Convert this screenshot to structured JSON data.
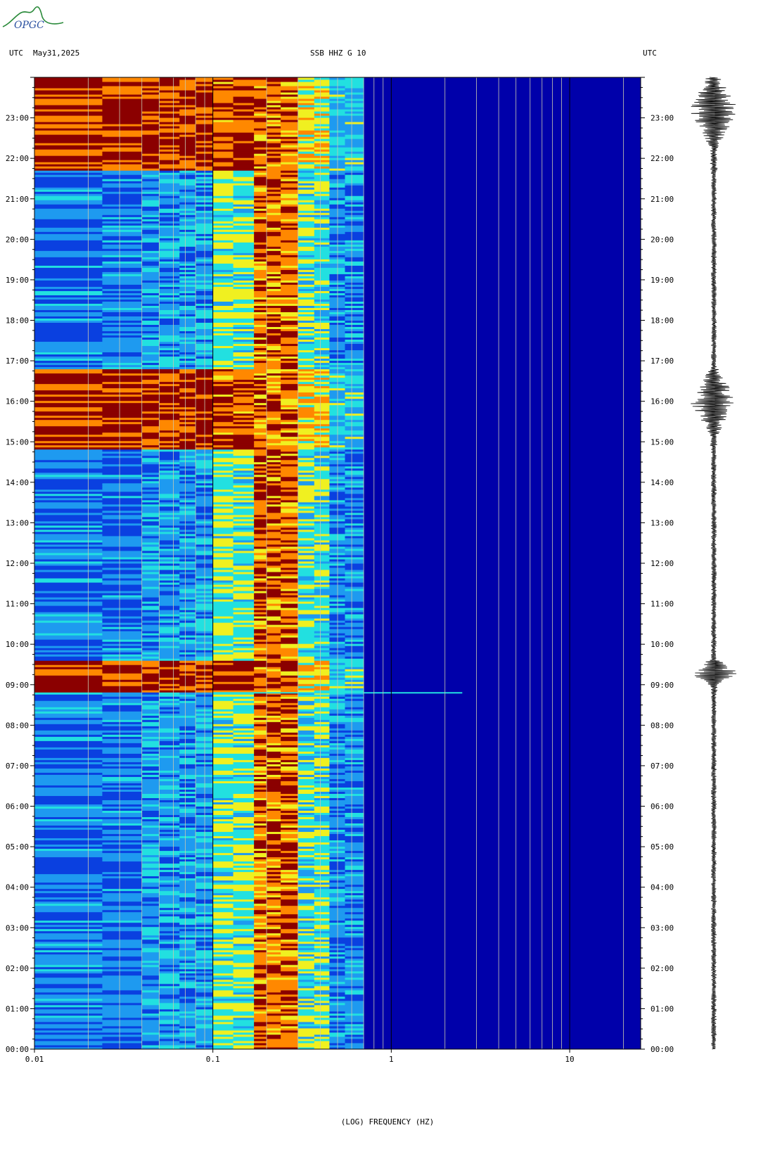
{
  "header": {
    "tz_left": "UTC",
    "date": "May31,2025",
    "station": "SSB HHZ G 10",
    "tz_right": "UTC"
  },
  "logo": {
    "text": "OPGC"
  },
  "colors": {
    "background": "#0000aa",
    "low": "#0a40e0",
    "mid_low": "#1e9af0",
    "mid": "#22e0e0",
    "mid_high": "#f0f020",
    "high": "#ff8800",
    "max": "#8b0000",
    "trace": "#000000",
    "grid": "#c8c8b0"
  },
  "chart_data": {
    "type": "heatmap",
    "title": "SSB HHZ G 10",
    "xlabel": "(LOG) FREQUENCY (HZ)",
    "x_scale": "log",
    "xlim": [
      0.01,
      25
    ],
    "x_ticks": [
      "0.01",
      "0.1",
      "1",
      "10"
    ],
    "y_unit": "UTC hour",
    "ylim": [
      0,
      24
    ],
    "y_ticks": [
      "00:00",
      "01:00",
      "02:00",
      "03:00",
      "04:00",
      "05:00",
      "06:00",
      "07:00",
      "08:00",
      "09:00",
      "10:00",
      "11:00",
      "12:00",
      "13:00",
      "14:00",
      "15:00",
      "16:00",
      "17:00",
      "18:00",
      "19:00",
      "20:00",
      "21:00",
      "22:00",
      "23:00"
    ],
    "grid": true,
    "energy_band_hz": [
      0.1,
      0.5
    ],
    "events": [
      {
        "start_hour": 8.8,
        "end_hour": 9.6,
        "peak_hour": 9.3
      },
      {
        "start_hour": 14.8,
        "end_hour": 16.8,
        "peak_hour": 16.0
      },
      {
        "start_hour": 21.7,
        "end_hour": 24.0,
        "peak_hour": 23.2
      }
    ]
  }
}
